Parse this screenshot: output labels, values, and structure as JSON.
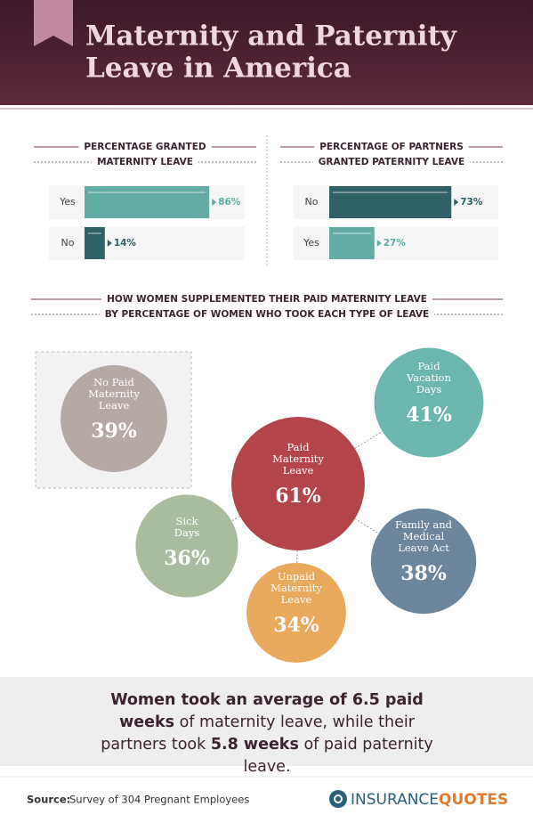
{
  "header": {
    "title_lines": [
      "Maternity and Paternity",
      "Leave in America"
    ]
  },
  "chart_data": [
    {
      "type": "bar",
      "orientation": "horizontal",
      "title_lines": [
        "PERCENTAGE GRANTED",
        "MATERNITY LEAVE"
      ],
      "categories": [
        "Yes",
        "No"
      ],
      "values": [
        86,
        14
      ],
      "value_labels": [
        "86%",
        "14%"
      ],
      "colors": [
        "#62aca4",
        "#2f6166"
      ]
    },
    {
      "type": "bar",
      "orientation": "horizontal",
      "title_lines": [
        "PERCENTAGE OF PARTNERS",
        "GRANTED PATERNITY LEAVE"
      ],
      "categories": [
        "No",
        "Yes"
      ],
      "values": [
        73,
        27
      ],
      "value_labels": [
        "73%",
        "27%"
      ],
      "colors": [
        "#2f6166",
        "#62aca4"
      ]
    },
    {
      "type": "bubble",
      "title_lines": [
        "HOW WOMEN SUPPLEMENTED THEIR PAID MATERNITY LEAVE",
        "BY PERCENTAGE OF WOMEN WHO TOOK EACH TYPE OF LEAVE"
      ],
      "categories": [
        [
          "Paid",
          "Maternity",
          "Leave"
        ],
        [
          "Paid",
          "Vacation",
          "Days"
        ],
        [
          "Family and",
          "Medical",
          "Leave Act"
        ],
        [
          "Unpaid",
          "Maternity",
          "Leave"
        ],
        [
          "Sick",
          "Days"
        ],
        [
          "No Paid",
          "Maternity",
          "Leave"
        ]
      ],
      "values": [
        61,
        41,
        38,
        34,
        36,
        39
      ],
      "value_labels": [
        "61%",
        "41%",
        "38%",
        "34%",
        "36%",
        "39%"
      ],
      "colors": [
        "#b3444a",
        "#6bb6ad",
        "#6b859d",
        "#e9a95d",
        "#a9bc9d",
        "#b4a9a5"
      ]
    }
  ],
  "summary": [
    {
      "text": "Women took an average of 6.5 paid weeks",
      "bold": true
    },
    {
      "text": " of maternity leave, while their partners took ",
      "bold": false
    },
    {
      "text": "5.8 weeks",
      "bold": true
    },
    {
      "text": " of paid paternity leave.",
      "bold": false
    }
  ],
  "footer": {
    "source_label": "Source:",
    "source": "Survey of 304 Pregnant Employees",
    "logo": [
      "INSURANCE",
      "QUOTES"
    ]
  }
}
